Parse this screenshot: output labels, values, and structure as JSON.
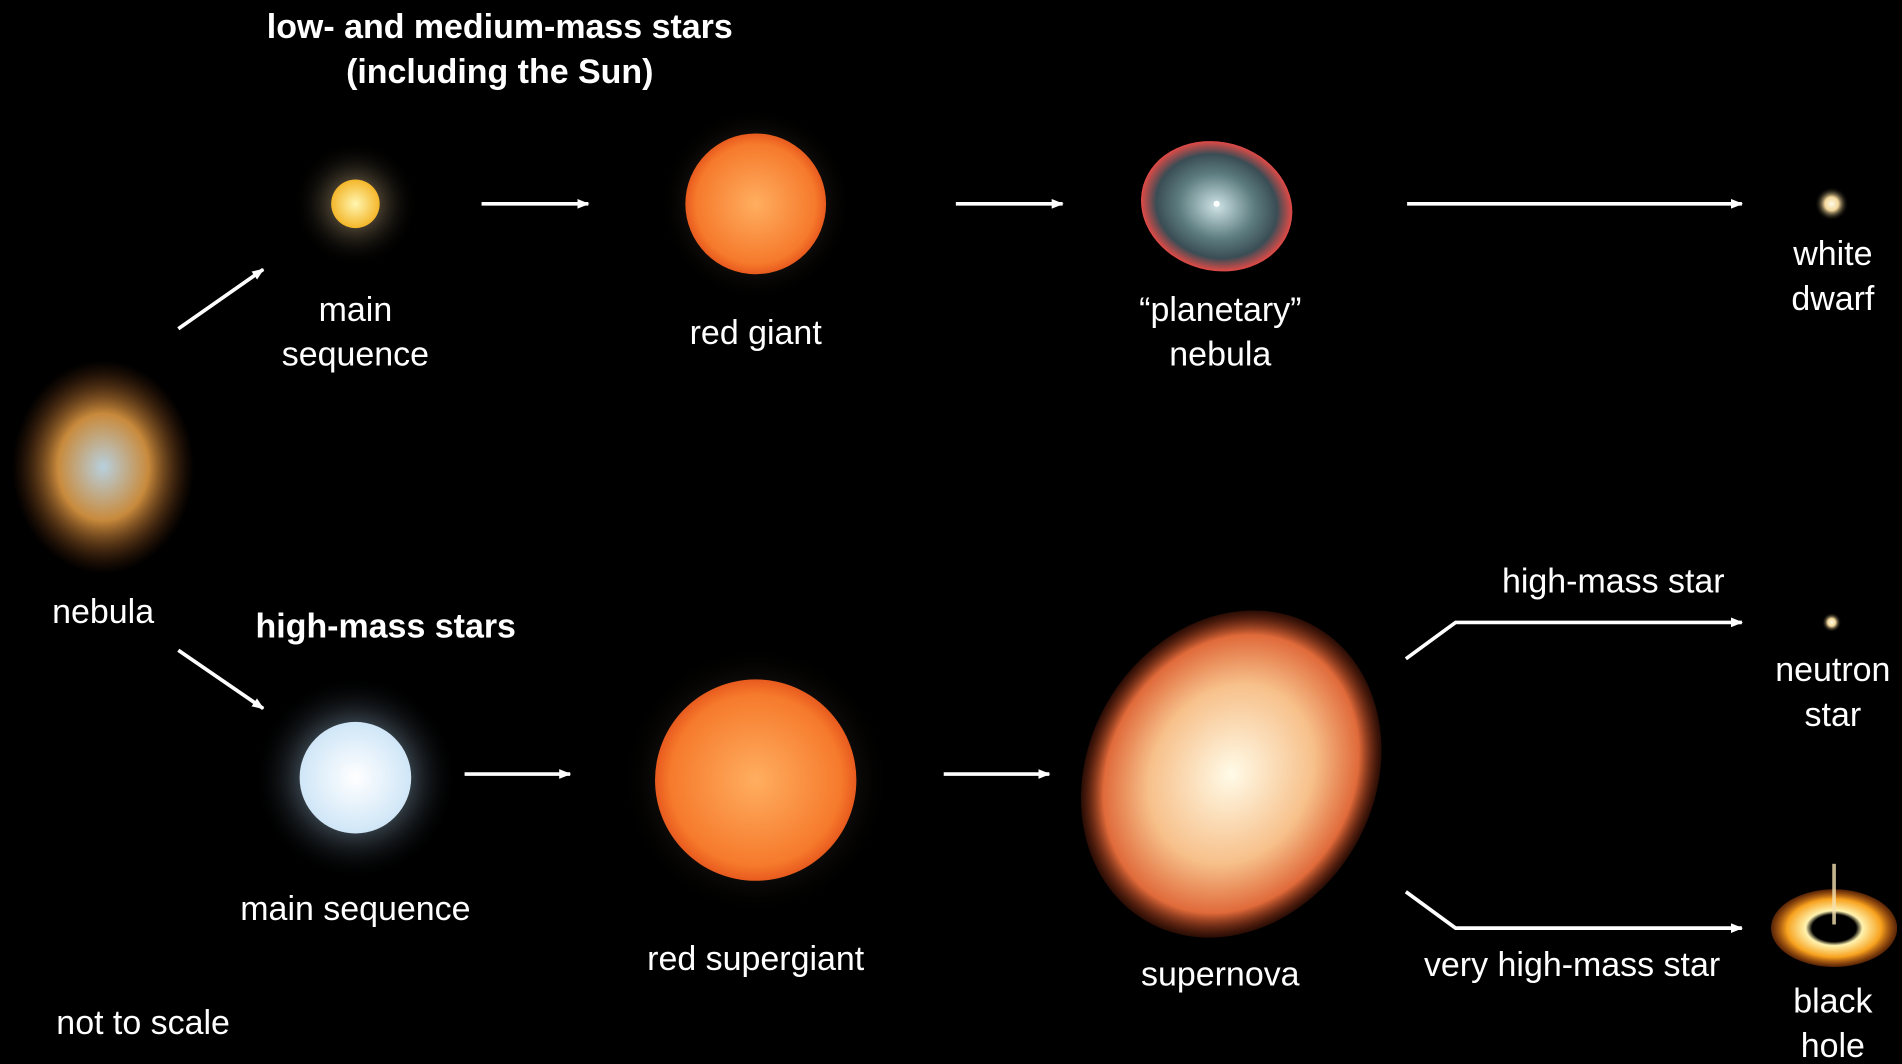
{
  "headings": {
    "low_mass": [
      "low- and medium-mass stars",
      "(including the Sun)"
    ],
    "high_mass": [
      "high-mass stars"
    ]
  },
  "nodes": [
    {
      "label": [
        "nebula"
      ]
    },
    {
      "label": [
        "main",
        "sequence"
      ]
    },
    {
      "label": [
        "red giant"
      ]
    },
    {
      "label": [
        "“planetary”",
        "nebula"
      ]
    },
    {
      "label": [
        "white",
        "dwarf"
      ]
    },
    {
      "label": [
        "main sequence"
      ]
    },
    {
      "label": [
        "red supergiant"
      ]
    },
    {
      "label": [
        "supernova"
      ]
    },
    {
      "label": [
        "neutron",
        "star"
      ]
    },
    {
      "label": [
        "black",
        "hole"
      ]
    }
  ],
  "branches": [
    "high-mass star",
    "very high-mass star"
  ],
  "note": "not to scale"
}
